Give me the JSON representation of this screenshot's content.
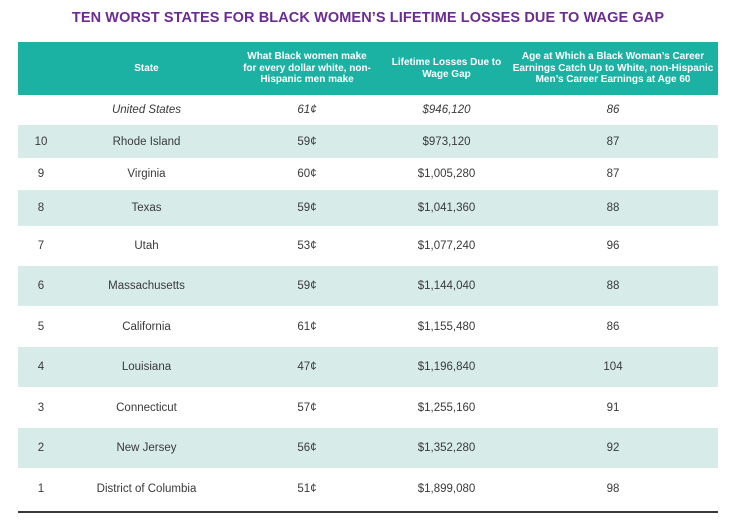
{
  "title": "TEN WORST STATES FOR BLACK WOMEN’S LIFETIME LOSSES DUE TO WAGE GAP",
  "colors": {
    "title": "#6a2c91",
    "header_bg": "#1bb2a4",
    "stripe": "#d7ebe9",
    "text": "#3a3a3a"
  },
  "chart_data": {
    "type": "table",
    "title": "TEN WORST STATES FOR BLACK WOMEN’S LIFETIME LOSSES DUE TO WAGE GAP",
    "columns": [
      "",
      "State",
      "What Black women make for every dollar white, non-Hispanic men make",
      "Lifetime Losses Due to Wage Gap",
      "Age at Which a Black Woman’s Career Earnings Catch Up to White, non-Hispanic Men’s Career Earnings at Age 60"
    ],
    "rows": [
      [
        "",
        "United States",
        "61¢",
        "$946,120",
        "86"
      ],
      [
        "10",
        "Rhode Island",
        "59¢",
        "$973,120",
        "87"
      ],
      [
        "9",
        "Virginia",
        "60¢",
        "$1,005,280",
        "87"
      ],
      [
        "8",
        "Texas",
        "59¢",
        "$1,041,360",
        "88"
      ],
      [
        "7",
        "Utah",
        "53¢",
        "$1,077,240",
        "96"
      ],
      [
        "6",
        "Massachusetts",
        "59¢",
        "$1,144,040",
        "88"
      ],
      [
        "5",
        "California",
        "61¢",
        "$1,155,480",
        "86"
      ],
      [
        "4",
        "Louisiana",
        "47¢",
        "$1,196,840",
        "104"
      ],
      [
        "3",
        "Connecticut",
        "57¢",
        "$1,255,160",
        "91"
      ],
      [
        "2",
        "New Jersey",
        "56¢",
        "$1,352,280",
        "92"
      ],
      [
        "1",
        "District of Columbia",
        "51¢",
        "$1,899,080",
        "98"
      ]
    ]
  }
}
